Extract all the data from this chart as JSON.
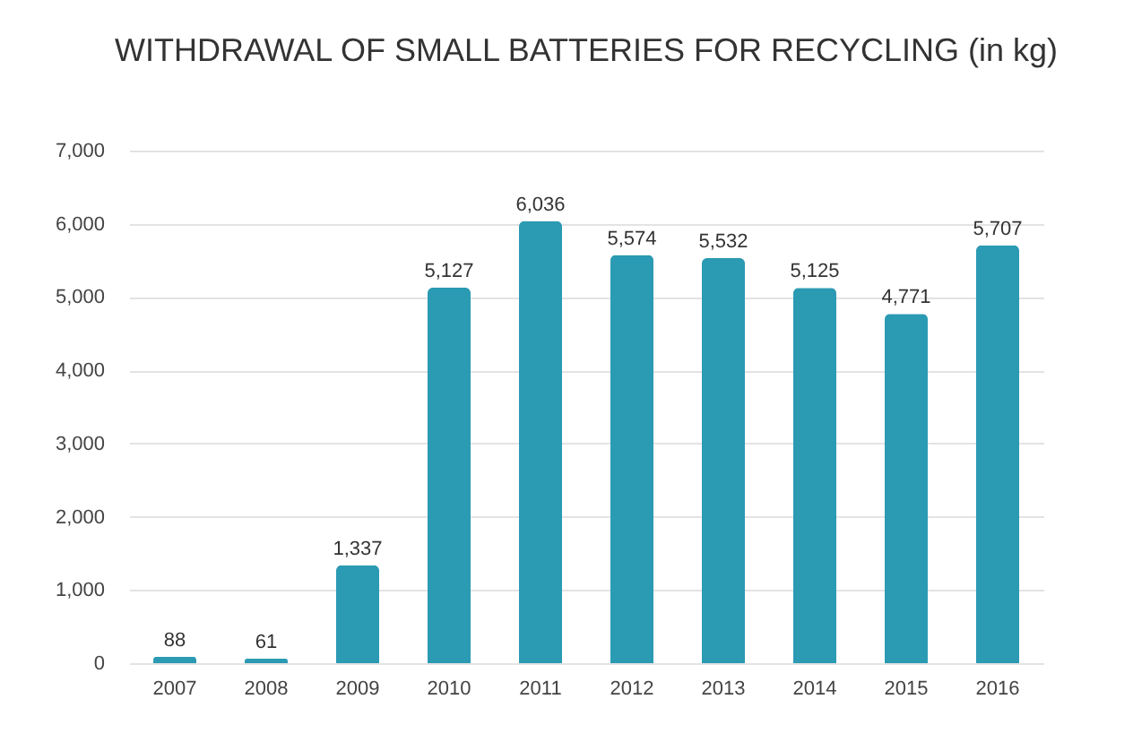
{
  "chart_data": {
    "type": "bar",
    "title": "WITHDRAWAL OF SMALL BATTERIES FOR RECYCLING (in kg)",
    "categories": [
      "2007",
      "2008",
      "2009",
      "2010",
      "2011",
      "2012",
      "2013",
      "2014",
      "2015",
      "2016"
    ],
    "values": [
      88,
      61,
      1337,
      5127,
      6036,
      5574,
      5532,
      5125,
      4771,
      5707
    ],
    "value_labels": [
      "88",
      "61",
      "1,337",
      "5,127",
      "6,036",
      "5,574",
      "5,532",
      "5,125",
      "4,771",
      "5,707"
    ],
    "color": "#2b9ab3",
    "ylim": [
      0,
      7000
    ],
    "yticks": [
      {
        "value": 0,
        "label": "0"
      },
      {
        "value": 1000,
        "label": "1,000"
      },
      {
        "value": 2000,
        "label": "2,000"
      },
      {
        "value": 3000,
        "label": "3,000"
      },
      {
        "value": 4000,
        "label": "4,000"
      },
      {
        "value": 5000,
        "label": "5,000"
      },
      {
        "value": 6000,
        "label": "6,000"
      },
      {
        "value": 7000,
        "label": "7,000"
      }
    ],
    "grid": "y"
  }
}
